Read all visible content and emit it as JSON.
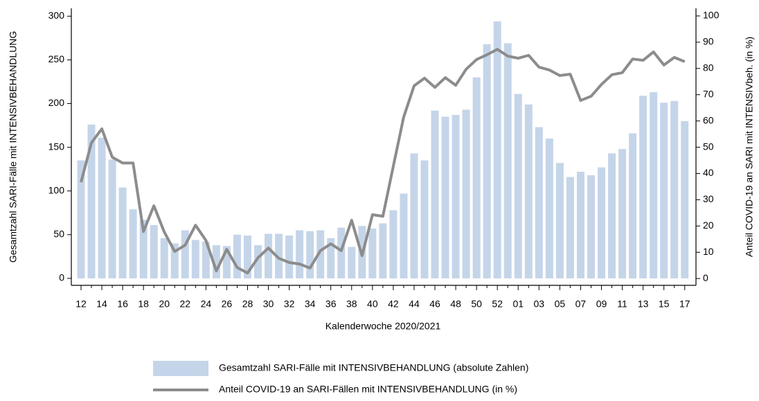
{
  "chart_data": {
    "type": "combo",
    "xlabel": "Kalenderwoche 2020/2021",
    "ylabel": "Gesamtzahl SARI-Fälle mit INTENSIVBEHANDLUNG",
    "y2label": "Anteil COVID-19 an SARI mit INTENSIVbeh. (in %)",
    "categories": [
      "12",
      null,
      "14",
      null,
      "16",
      null,
      "18",
      null,
      "20",
      null,
      "22",
      null,
      "24",
      null,
      "26",
      null,
      "28",
      null,
      "30",
      null,
      "32",
      null,
      "34",
      null,
      "36",
      null,
      "38",
      null,
      "40",
      null,
      "42",
      null,
      "44",
      null,
      "46",
      null,
      "48",
      null,
      "50",
      null,
      "52",
      null,
      "01",
      null,
      "03",
      null,
      "05",
      null,
      "07",
      null,
      "09",
      null,
      "11",
      null,
      "13",
      null,
      "15",
      null,
      "17"
    ],
    "ylim": [
      -8,
      309
    ],
    "yticks": [
      0,
      50,
      100,
      150,
      200,
      250,
      300
    ],
    "y2lim": [
      -2.6,
      102.9
    ],
    "y2ticks": [
      0,
      10,
      20,
      30,
      40,
      50,
      60,
      70,
      80,
      90,
      100
    ],
    "series": [
      {
        "name": "Gesamtzahl SARI-Fälle mit INTENSIVBEHANDLUNG (absolute Zahlen)",
        "type": "bar",
        "color": "#c5d5e9",
        "axis": "y",
        "values": [
          135,
          176,
          161,
          136,
          104,
          79,
          67,
          61,
          46,
          40,
          55,
          44,
          42,
          38,
          37,
          50,
          49,
          38,
          51,
          51,
          49,
          55,
          54,
          55,
          46,
          58,
          36,
          60,
          57,
          63,
          78,
          97,
          143,
          135,
          192,
          185,
          187,
          193,
          230,
          268,
          294,
          269,
          211,
          199,
          173,
          160,
          132,
          116,
          122,
          118,
          127,
          143,
          148,
          166,
          209,
          213,
          201,
          203,
          180
        ]
      },
      {
        "name": "Anteil COVID-19 an SARI-Fällen mit INTENSIVBEHANDLUNG (in %)",
        "type": "line",
        "color": "#8c8c8c",
        "axis": "y2",
        "values": [
          36.7,
          51.7,
          57,
          46.2,
          44,
          44,
          17.9,
          27.7,
          17.7,
          10.3,
          12.7,
          20.3,
          14.5,
          2.9,
          11.1,
          4.2,
          2.1,
          7.9,
          11.6,
          7.7,
          6.1,
          5.5,
          4,
          10.6,
          13.2,
          10.6,
          22.2,
          8.7,
          24.3,
          23.7,
          42.7,
          61.5,
          73.4,
          76.3,
          72.8,
          76.5,
          73.6,
          79.7,
          83.4,
          85.2,
          87.3,
          84.7,
          83.9,
          85,
          80.5,
          79.4,
          77.3,
          77.8,
          67.8,
          69.4,
          73.9,
          77.6,
          78.4,
          83.6,
          83.1,
          86.3,
          81.3,
          84.2,
          82.6
        ]
      }
    ]
  }
}
